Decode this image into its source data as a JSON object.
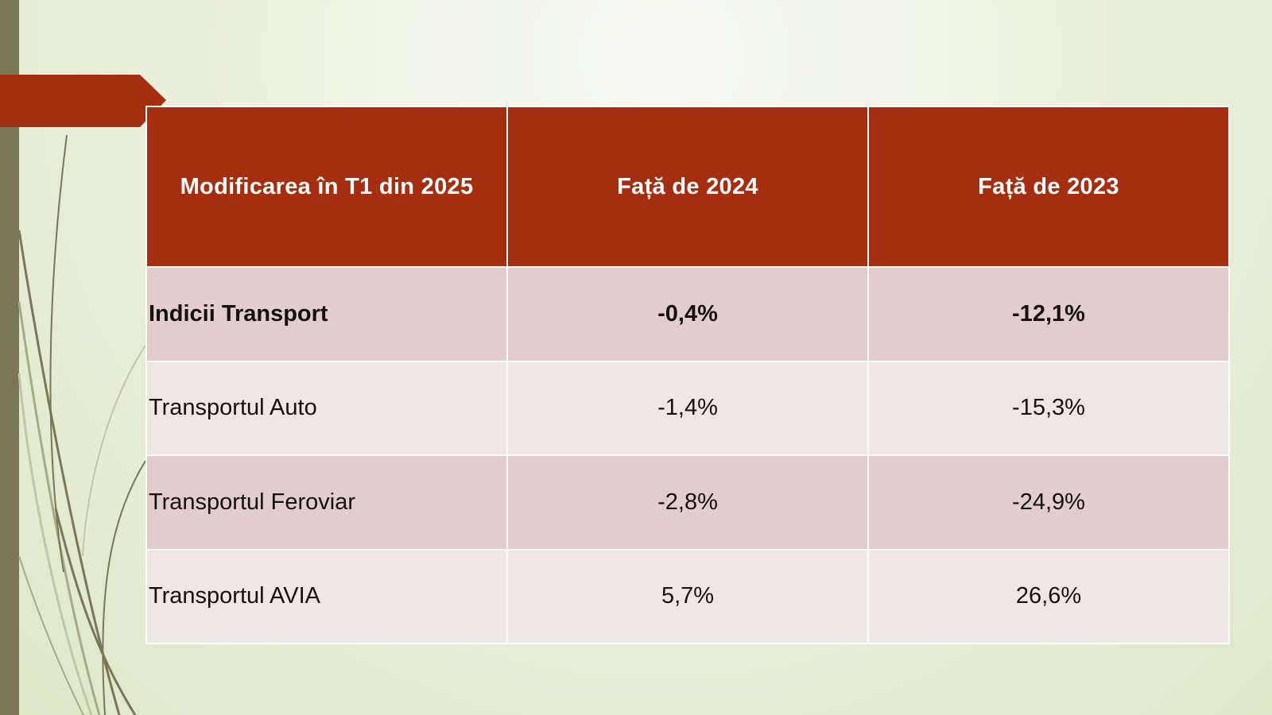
{
  "colors": {
    "header_bg": "#a52d10",
    "row_dark_bg": "#e2cdcc",
    "row_light_bg": "#efe7e6",
    "accent_bar": "#7a7656",
    "background": "#e6edd4"
  },
  "table": {
    "headers": [
      "Modificarea în T1 din 2025",
      "Față de 2024",
      "Față de 2023"
    ],
    "rows": [
      {
        "label": "Indicii Transport",
        "vs_2024": "-0,4%",
        "vs_2023": "-12,1%"
      },
      {
        "label": "Transportul Auto",
        "vs_2024": "-1,4%",
        "vs_2023": "-15,3%"
      },
      {
        "label": "Transportul Feroviar",
        "vs_2024": "-2,8%",
        "vs_2023": "-24,9%"
      },
      {
        "label": "Transportul AVIA",
        "vs_2024": "5,7%",
        "vs_2023": "26,6%"
      }
    ]
  }
}
